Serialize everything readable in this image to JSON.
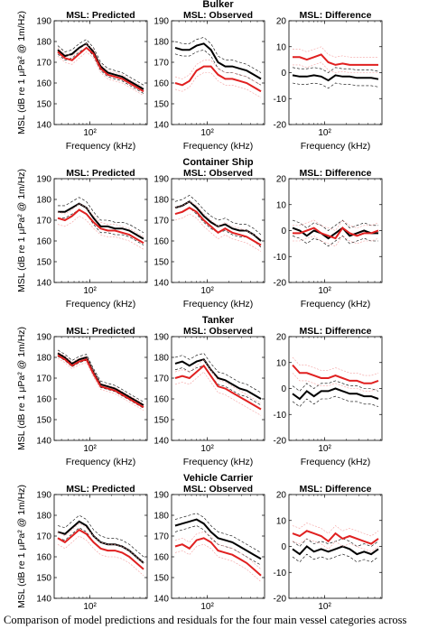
{
  "caption": "Comparison of model predictions and residuals for the four main vessel categories across",
  "shared": {
    "xlabel": "Frequency (kHz)",
    "ylabel": "MSL (dB re 1 μPa² @ 1m/Hz)",
    "xtick_label": "10²",
    "panel_titles": [
      "MSL: Predicted",
      "MSL: Observed",
      "MSL: Difference"
    ],
    "colors": {
      "model": "#000000",
      "observed": "#e02020",
      "ci_model": "#000000",
      "ci_observed": "#f4a0a0"
    }
  },
  "chart_data": [
    {
      "type": "line",
      "group": "Bulker",
      "x_log10": [
        1.55,
        1.65,
        1.75,
        1.85,
        1.95,
        2.05,
        2.15,
        2.25,
        2.35,
        2.45,
        2.55,
        2.65,
        2.75
      ],
      "panels": [
        {
          "title": "MSL: Predicted",
          "ylim": [
            140,
            190
          ],
          "yticks": [
            140,
            150,
            160,
            170,
            180,
            190
          ],
          "series": [
            {
              "role": "black",
              "values": [
                176,
                173,
                174,
                177,
                179,
                175,
                168,
                165,
                164,
                163,
                161,
                159,
                157
              ]
            },
            {
              "role": "red",
              "values": [
                175,
                172,
                171,
                174,
                177,
                174,
                167,
                164,
                163,
                162,
                160,
                158,
                156
              ]
            }
          ],
          "band": 2
        },
        {
          "title": "MSL: Observed",
          "ylim": [
            140,
            190
          ],
          "yticks": [
            140,
            150,
            160,
            170,
            180,
            190
          ],
          "series": [
            {
              "role": "black",
              "values": [
                177,
                176,
                176,
                178,
                179,
                176,
                170,
                168,
                168,
                167,
                166,
                164,
                162
              ]
            },
            {
              "role": "red",
              "values": [
                160,
                159,
                161,
                166,
                168,
                168,
                164,
                162,
                162,
                161,
                160,
                158,
                156
              ]
            }
          ],
          "band": 3
        },
        {
          "title": "MSL: Difference",
          "ylim": [
            -20,
            20
          ],
          "yticks": [
            -20,
            -10,
            0,
            10,
            20
          ],
          "series": [
            {
              "role": "black",
              "values": [
                -1,
                -1.5,
                -1.5,
                -1,
                -1.5,
                -3,
                -1,
                -1.5,
                -1.5,
                -2,
                -2,
                -2,
                -2.5
              ]
            },
            {
              "role": "red",
              "values": [
                6,
                6,
                5,
                6,
                7,
                4,
                3,
                3.5,
                3,
                3,
                3,
                3,
                3
              ]
            }
          ],
          "band": 3
        }
      ]
    },
    {
      "type": "line",
      "group": "Container Ship",
      "x_log10": [
        1.55,
        1.65,
        1.75,
        1.85,
        1.95,
        2.05,
        2.15,
        2.25,
        2.35,
        2.45,
        2.55,
        2.65,
        2.75
      ],
      "panels": [
        {
          "title": "MSL: Predicted",
          "ylim": [
            140,
            190
          ],
          "yticks": [
            140,
            150,
            160,
            170,
            180,
            190
          ],
          "series": [
            {
              "role": "black",
              "values": [
                174,
                174,
                176,
                178,
                176,
                171,
                167,
                167,
                166,
                166,
                165,
                163,
                161
              ]
            },
            {
              "role": "red",
              "values": [
                171,
                170,
                172,
                175,
                173,
                169,
                166,
                165,
                165,
                164,
                163,
                161,
                159
              ]
            }
          ],
          "band": 3
        },
        {
          "title": "MSL: Observed",
          "ylim": [
            140,
            190
          ],
          "yticks": [
            140,
            150,
            160,
            170,
            180,
            190
          ],
          "series": [
            {
              "role": "black",
              "values": [
                176,
                177,
                179,
                176,
                172,
                169,
                167,
                168,
                166,
                165,
                165,
                163,
                160
              ]
            },
            {
              "role": "red",
              "values": [
                173,
                174,
                176,
                174,
                170,
                167,
                164,
                166,
                164,
                163,
                162,
                160,
                158
              ]
            }
          ],
          "band": 3
        },
        {
          "title": "MSL: Difference",
          "ylim": [
            -20,
            20
          ],
          "yticks": [
            -20,
            -10,
            0,
            10,
            20
          ],
          "series": [
            {
              "role": "black",
              "values": [
                1,
                0,
                -2,
                0,
                -1,
                -3,
                -1,
                1,
                -2,
                -1,
                0,
                -1,
                -1
              ]
            },
            {
              "role": "red",
              "values": [
                -1,
                -1,
                0,
                1,
                -1,
                -2,
                -3,
                1,
                -1,
                -2,
                -1,
                -1,
                0
              ]
            }
          ],
          "band": 3
        }
      ]
    },
    {
      "type": "line",
      "group": "Tanker",
      "x_log10": [
        1.55,
        1.65,
        1.75,
        1.85,
        1.95,
        2.05,
        2.15,
        2.25,
        2.35,
        2.45,
        2.55,
        2.65,
        2.75
      ],
      "panels": [
        {
          "title": "MSL: Predicted",
          "ylim": [
            140,
            190
          ],
          "yticks": [
            140,
            150,
            160,
            170,
            180,
            190
          ],
          "series": [
            {
              "role": "black",
              "values": [
                182,
                180,
                177,
                179,
                180,
                173,
                167,
                166,
                165,
                163,
                161,
                159,
                157
              ]
            },
            {
              "role": "red",
              "values": [
                181,
                179,
                176,
                178,
                179,
                172,
                166,
                165,
                164,
                162,
                160,
                158,
                156
              ]
            }
          ],
          "band": 1.5
        },
        {
          "title": "MSL: Observed",
          "ylim": [
            140,
            190
          ],
          "yticks": [
            140,
            150,
            160,
            170,
            180,
            190
          ],
          "series": [
            {
              "role": "black",
              "values": [
                177,
                178,
                176,
                178,
                179,
                174,
                170,
                169,
                167,
                165,
                164,
                162,
                160
              ]
            },
            {
              "role": "red",
              "values": [
                170,
                171,
                170,
                173,
                176,
                171,
                166,
                165,
                163,
                161,
                159,
                157,
                155
              ]
            }
          ],
          "band": 3
        },
        {
          "title": "MSL: Difference",
          "ylim": [
            -20,
            20
          ],
          "yticks": [
            -20,
            -10,
            0,
            10,
            20
          ],
          "series": [
            {
              "role": "black",
              "values": [
                -2,
                -4,
                -1,
                -3,
                -1,
                -1,
                0,
                -1,
                -2,
                -2,
                -3,
                -3,
                -4
              ]
            },
            {
              "role": "red",
              "values": [
                9,
                6,
                6,
                5,
                4,
                4,
                5,
                4,
                3,
                3,
                2,
                2,
                3
              ]
            }
          ],
          "band": 3
        }
      ]
    },
    {
      "type": "line",
      "group": "Vehicle Carrier",
      "x_log10": [
        1.55,
        1.65,
        1.75,
        1.85,
        1.95,
        2.05,
        2.15,
        2.25,
        2.35,
        2.45,
        2.55,
        2.65,
        2.75
      ],
      "panels": [
        {
          "title": "MSL: Predicted",
          "ylim": [
            140,
            190
          ],
          "yticks": [
            140,
            150,
            160,
            170,
            180,
            190
          ],
          "series": [
            {
              "role": "black",
              "values": [
                172,
                171,
                174,
                177,
                175,
                170,
                167,
                166,
                166,
                165,
                163,
                160,
                157
              ]
            },
            {
              "role": "red",
              "values": [
                169,
                167,
                170,
                173,
                171,
                167,
                164,
                163,
                163,
                162,
                160,
                157,
                154
              ]
            }
          ],
          "band": 3
        },
        {
          "title": "MSL: Observed",
          "ylim": [
            140,
            190
          ],
          "yticks": [
            140,
            150,
            160,
            170,
            180,
            190
          ],
          "series": [
            {
              "role": "black",
              "values": [
                175,
                176,
                177,
                178,
                176,
                172,
                169,
                168,
                167,
                165,
                163,
                161,
                159
              ]
            },
            {
              "role": "red",
              "values": [
                165,
                166,
                164,
                168,
                169,
                167,
                163,
                162,
                161,
                159,
                157,
                154,
                151
              ]
            }
          ],
          "band": 3
        },
        {
          "title": "MSL: Difference",
          "ylim": [
            -20,
            20
          ],
          "yticks": [
            -20,
            -10,
            0,
            10,
            20
          ],
          "series": [
            {
              "role": "black",
              "values": [
                -1,
                -3,
                0,
                -2,
                -1,
                -2,
                -1,
                0,
                -1,
                -3,
                -2,
                -3,
                -1
              ]
            },
            {
              "role": "red",
              "values": [
                5,
                4,
                6,
                5,
                4,
                2,
                5,
                3,
                4,
                3,
                2,
                1,
                3
              ]
            }
          ],
          "band": 3
        }
      ]
    }
  ]
}
